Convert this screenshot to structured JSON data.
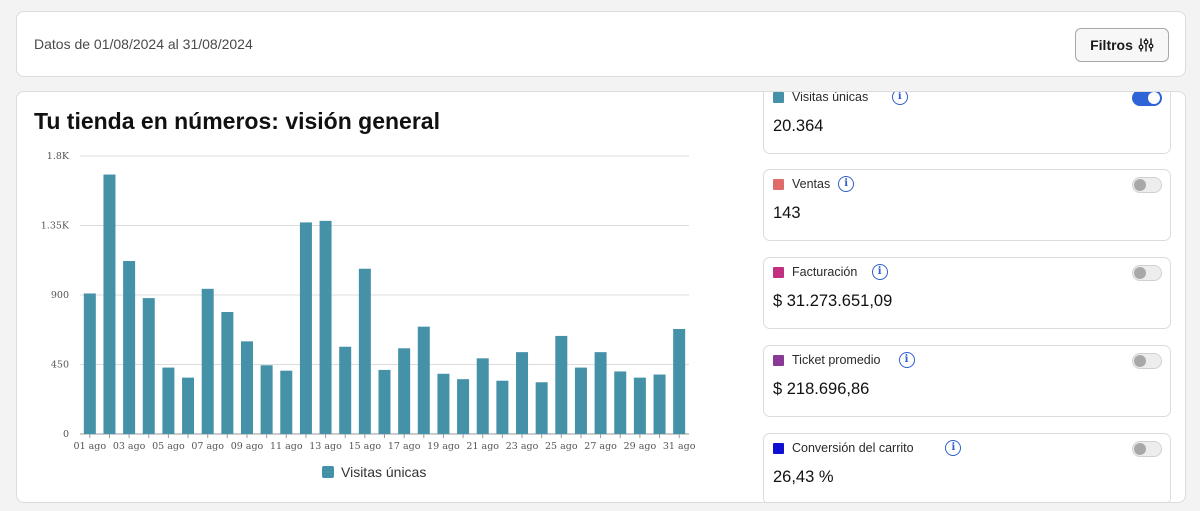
{
  "header": {
    "date_range": "Datos de 01/08/2024 al 31/08/2024",
    "filters_label": "Filtros"
  },
  "panel": {
    "title": "Tu tienda en números: visión general"
  },
  "chart_data": {
    "type": "bar",
    "categories": [
      "01 ago",
      "02 ago",
      "03 ago",
      "04 ago",
      "05 ago",
      "06 ago",
      "07 ago",
      "08 ago",
      "09 ago",
      "10 ago",
      "11 ago",
      "12 ago",
      "13 ago",
      "14 ago",
      "15 ago",
      "16 ago",
      "17 ago",
      "18 ago",
      "19 ago",
      "20 ago",
      "21 ago",
      "22 ago",
      "23 ago",
      "24 ago",
      "25 ago",
      "26 ago",
      "27 ago",
      "28 ago",
      "29 ago",
      "30 ago",
      "31 ago"
    ],
    "tick_labels": [
      "01 ago",
      "03 ago",
      "05 ago",
      "07 ago",
      "09 ago",
      "11 ago",
      "13 ago",
      "15 ago",
      "17 ago",
      "19 ago",
      "21 ago",
      "23 ago",
      "25 ago",
      "27 ago",
      "29 ago",
      "31 ago"
    ],
    "series": [
      {
        "name": "Visitas únicas",
        "color": "#4592a8",
        "values": [
          910,
          1680,
          1120,
          880,
          430,
          365,
          940,
          790,
          600,
          445,
          410,
          1370,
          1380,
          565,
          1070,
          415,
          555,
          695,
          390,
          355,
          490,
          345,
          530,
          335,
          635,
          430,
          530,
          405,
          365,
          385,
          680
        ]
      }
    ],
    "yticks": [
      "0",
      "450",
      "900",
      "1.35K",
      "1.8K"
    ],
    "ylim": [
      0,
      1800
    ],
    "legend_position": "bottom",
    "grid": true
  },
  "metrics": [
    {
      "label": "Visitas únicas",
      "value": "20.364",
      "color": "#4592a8",
      "enabled": true
    },
    {
      "label": "Ventas",
      "value": "143",
      "color": "#e06b6b",
      "enabled": false
    },
    {
      "label": "Facturación",
      "value": "$ 31.273.651,09",
      "color": "#c2307f",
      "enabled": false
    },
    {
      "label": "Ticket promedio",
      "value": "$ 218.696,86",
      "color": "#8a3a96",
      "enabled": false
    },
    {
      "label": "Conversión del carrito",
      "value": "26,43 %",
      "color": "#1010d0",
      "enabled": false
    }
  ],
  "icons": {
    "filter": "sliders-icon",
    "info": "info-icon"
  }
}
